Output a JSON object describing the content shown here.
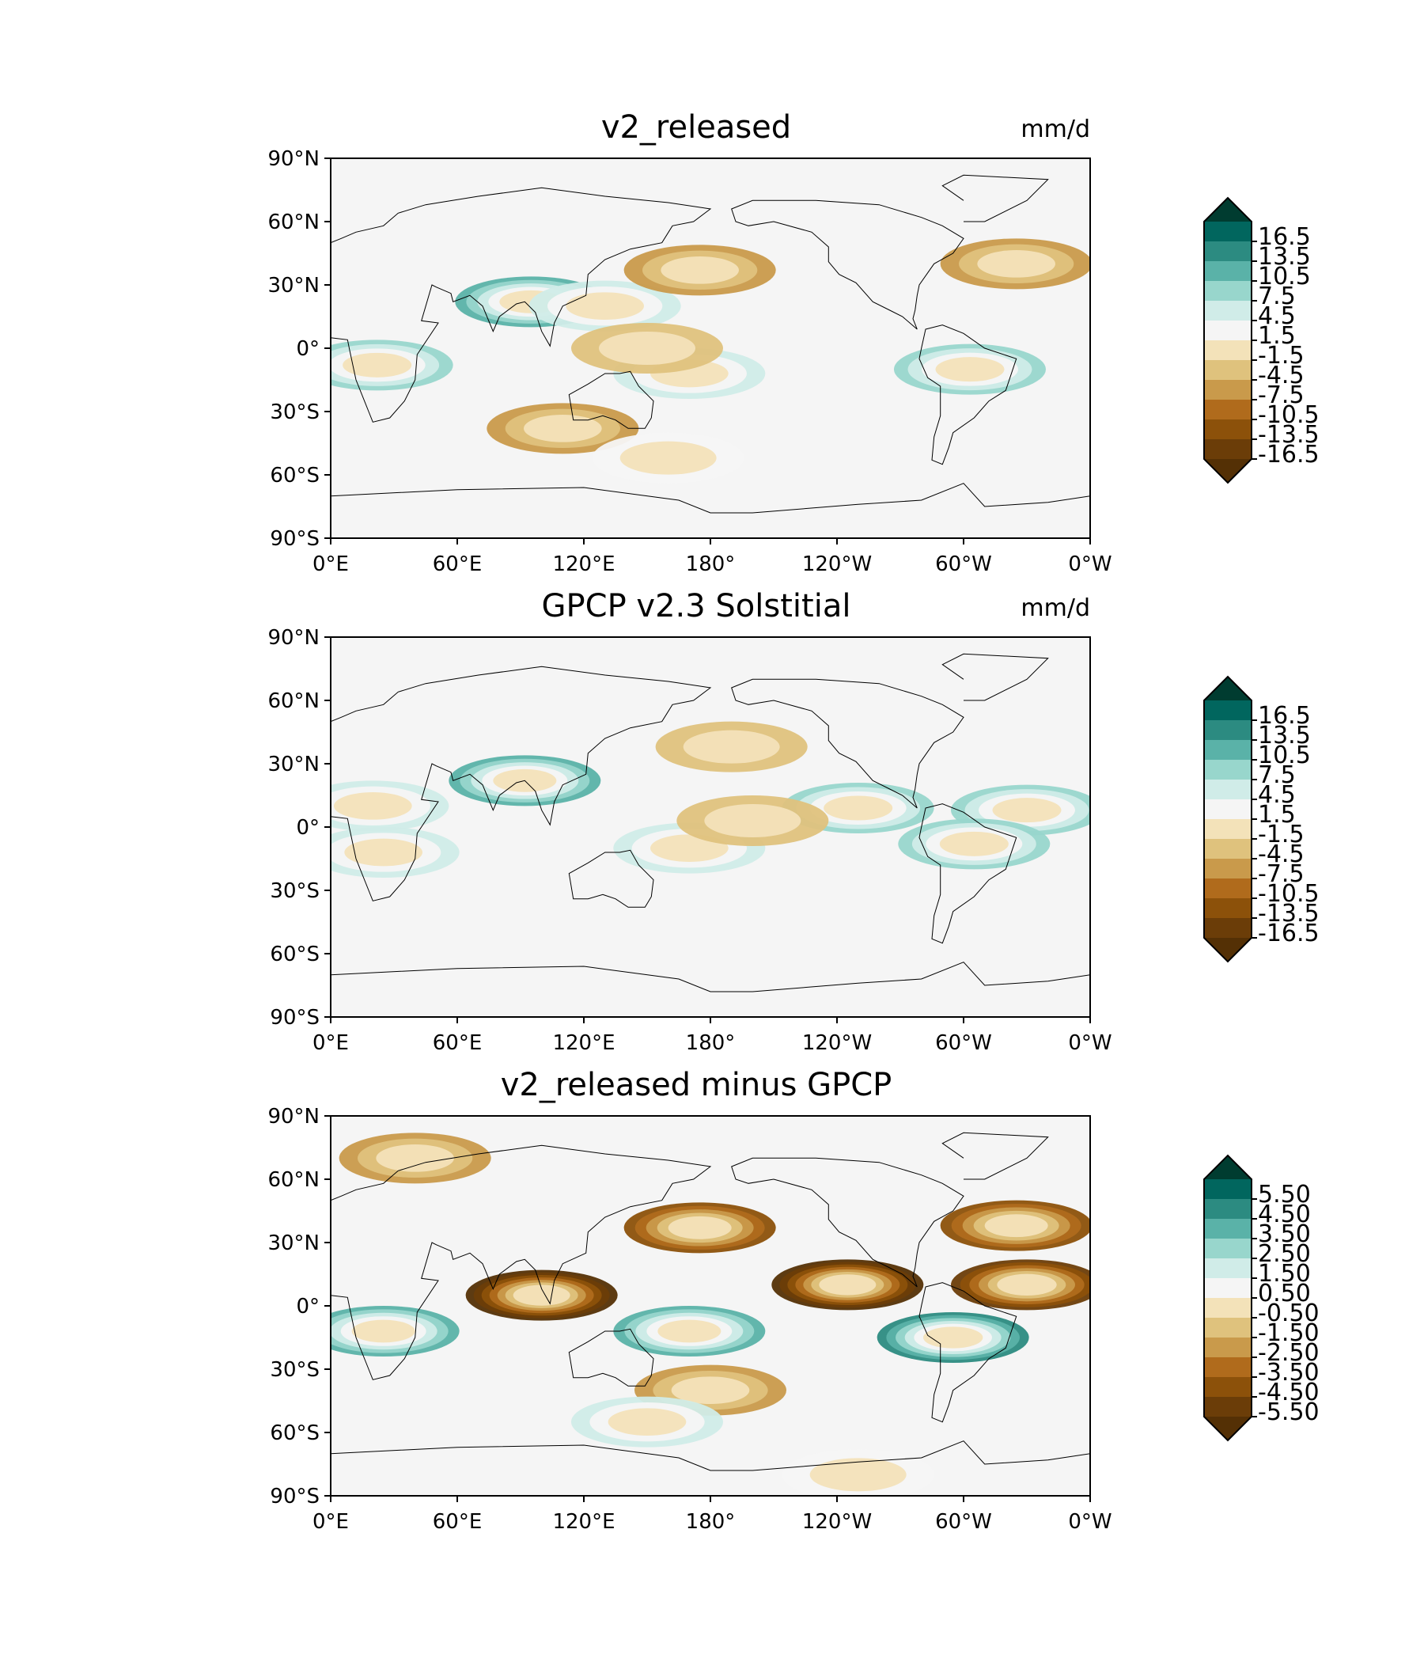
{
  "chart_data": [
    {
      "type": "contour-map",
      "title": "v2_released",
      "units": "mm/d",
      "lat_ticks": [
        "90°N",
        "60°N",
        "30°N",
        "0°",
        "30°S",
        "60°S",
        "90°S"
      ],
      "lon_ticks": [
        "0°E",
        "60°E",
        "120°E",
        "180°",
        "120°W",
        "60°W",
        "0°W"
      ],
      "colorbar": {
        "extend": "both",
        "levels": [
          -16.5,
          -13.5,
          -10.5,
          -7.5,
          -4.5,
          -1.5,
          1.5,
          4.5,
          7.5,
          10.5,
          13.5,
          16.5
        ],
        "tick_labels": [
          "16.5",
          "13.5",
          "10.5",
          "7.5",
          "4.5",
          "1.5",
          "-1.5",
          "-4.5",
          "-7.5",
          "-10.5",
          "-13.5",
          "-16.5"
        ]
      },
      "features": [
        {
          "lon": 22,
          "lat": -8,
          "value": 7.5
        },
        {
          "lon": 95,
          "lat": 22,
          "value": 10.5
        },
        {
          "lon": 130,
          "lat": 20,
          "value": 4.5
        },
        {
          "lon": 170,
          "lat": -12,
          "value": 4.5
        },
        {
          "lon": 303,
          "lat": -10,
          "value": 7.5
        },
        {
          "lon": 175,
          "lat": 37,
          "value": -4.5
        },
        {
          "lon": 325,
          "lat": 40,
          "value": -4.5
        },
        {
          "lon": 150,
          "lat": 0,
          "value": -1.5
        },
        {
          "lon": 110,
          "lat": -38,
          "value": -4.5
        },
        {
          "lon": 160,
          "lat": -52,
          "value": 1.5
        }
      ]
    },
    {
      "type": "contour-map",
      "title": "GPCP v2.3 Solstitial",
      "units": "mm/d",
      "lat_ticks": [
        "90°N",
        "60°N",
        "30°N",
        "0°",
        "30°S",
        "60°S",
        "90°S"
      ],
      "lon_ticks": [
        "0°E",
        "60°E",
        "120°E",
        "180°",
        "120°W",
        "60°W",
        "0°W"
      ],
      "colorbar": {
        "extend": "both",
        "levels": [
          -16.5,
          -13.5,
          -10.5,
          -7.5,
          -4.5,
          -1.5,
          1.5,
          4.5,
          7.5,
          10.5,
          13.5,
          16.5
        ],
        "tick_labels": [
          "16.5",
          "13.5",
          "10.5",
          "7.5",
          "4.5",
          "1.5",
          "-1.5",
          "-4.5",
          "-7.5",
          "-10.5",
          "-13.5",
          "-16.5"
        ]
      },
      "features": [
        {
          "lon": 92,
          "lat": 22,
          "value": 10.5
        },
        {
          "lon": 20,
          "lat": 10,
          "value": 4.5
        },
        {
          "lon": 25,
          "lat": -12,
          "value": 4.5
        },
        {
          "lon": 250,
          "lat": 9,
          "value": 7.5
        },
        {
          "lon": 330,
          "lat": 8,
          "value": 7.5
        },
        {
          "lon": 305,
          "lat": -8,
          "value": 7.5
        },
        {
          "lon": 170,
          "lat": -10,
          "value": 4.5
        },
        {
          "lon": 200,
          "lat": 3,
          "value": -1.5
        },
        {
          "lon": 190,
          "lat": 38,
          "value": -1.5
        }
      ]
    },
    {
      "type": "contour-map",
      "title": "v2_released minus GPCP",
      "units": "",
      "lat_ticks": [
        "90°N",
        "60°N",
        "30°N",
        "0°",
        "30°S",
        "60°S",
        "90°S"
      ],
      "lon_ticks": [
        "0°E",
        "60°E",
        "120°E",
        "180°",
        "120°W",
        "60°W",
        "0°W"
      ],
      "colorbar": {
        "extend": "both",
        "levels": [
          -5.5,
          -4.5,
          -3.5,
          -2.5,
          -1.5,
          -0.5,
          0.5,
          1.5,
          2.5,
          3.5,
          4.5,
          5.5
        ],
        "tick_labels": [
          "5.50",
          "4.50",
          "3.50",
          "2.50",
          "1.50",
          "0.50",
          "-0.50",
          "-1.50",
          "-2.50",
          "-3.50",
          "-4.50",
          "-5.50"
        ]
      },
      "features": [
        {
          "lon": 100,
          "lat": 5,
          "value": -5.5
        },
        {
          "lon": 245,
          "lat": 10,
          "value": -5.5
        },
        {
          "lon": 330,
          "lat": 10,
          "value": -4.5
        },
        {
          "lon": 175,
          "lat": 37,
          "value": -3.5
        },
        {
          "lon": 325,
          "lat": 38,
          "value": -3.5
        },
        {
          "lon": 25,
          "lat": -12,
          "value": 3.5
        },
        {
          "lon": 295,
          "lat": -15,
          "value": 4.5
        },
        {
          "lon": 170,
          "lat": -12,
          "value": 3.5
        },
        {
          "lon": 40,
          "lat": 70,
          "value": -1.5
        },
        {
          "lon": 180,
          "lat": -40,
          "value": -1.5
        },
        {
          "lon": 150,
          "lat": -55,
          "value": 1.5
        },
        {
          "lon": 250,
          "lat": -80,
          "value": 0.5
        }
      ]
    }
  ],
  "colors": {
    "brbg_under": "#543005",
    "brbg": [
      "#6b3d08",
      "#8c510a",
      "#b06b1c",
      "#c99a4b",
      "#dfc27d",
      "#f3e2b9",
      "#f5f5f5",
      "#d0ece8",
      "#98d6cc",
      "#5ab2a8",
      "#2c8b81",
      "#01665e"
    ],
    "brbg_over": "#003c30"
  }
}
